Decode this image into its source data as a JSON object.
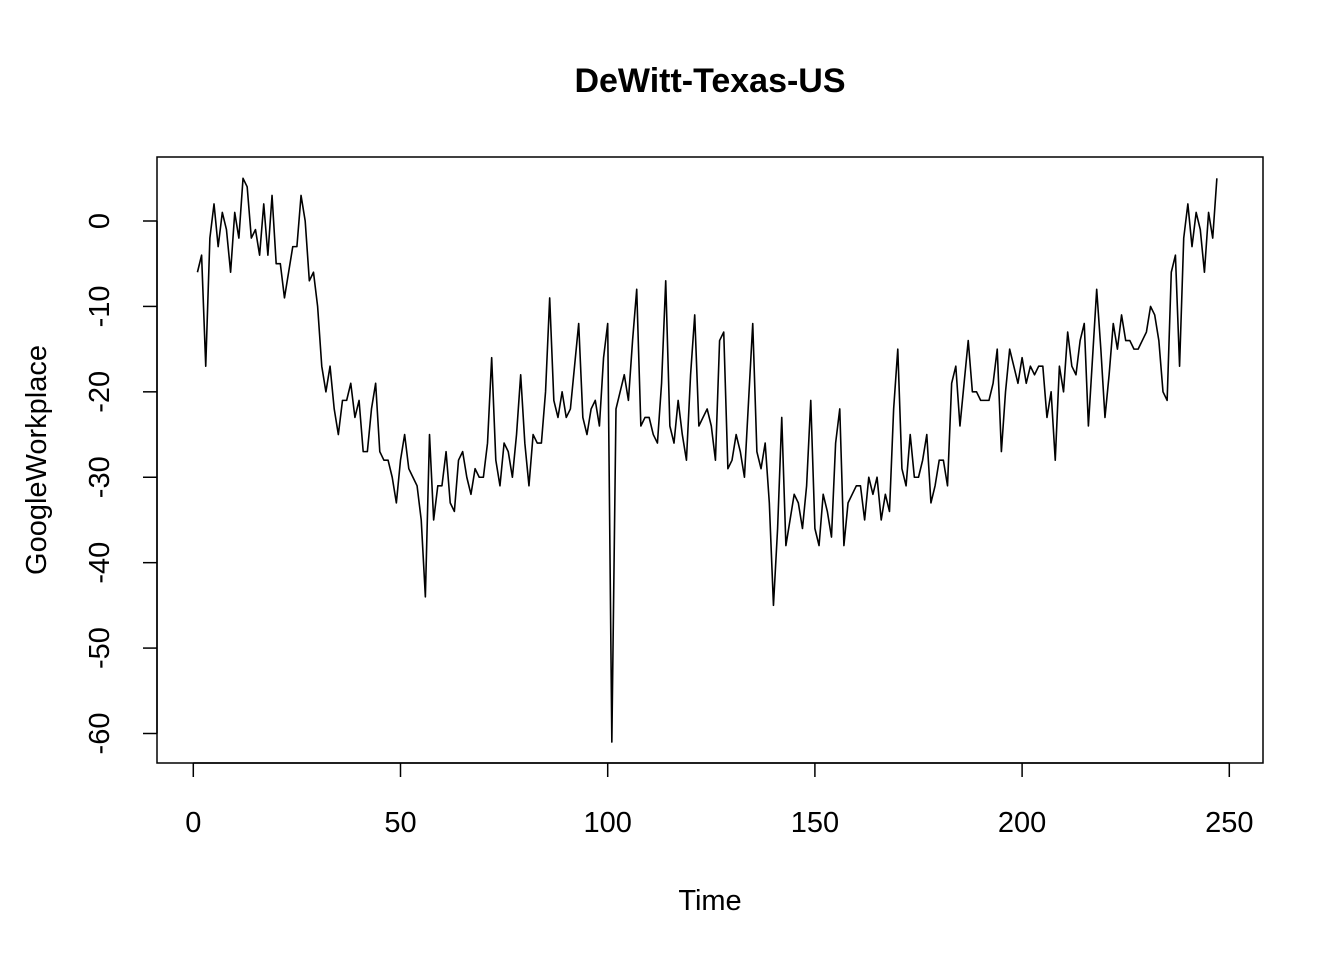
{
  "chart_data": {
    "type": "line",
    "title": "DeWitt-Texas-US",
    "xlabel": "Time",
    "ylabel": "GoogleWorkplace",
    "xlim": [
      1,
      248
    ],
    "ylim": [
      -61,
      5
    ],
    "x_ticks": [
      0,
      50,
      100,
      150,
      200,
      250
    ],
    "y_ticks": [
      0,
      -10,
      -20,
      -30,
      -40,
      -50,
      -60
    ],
    "grid": false,
    "legend": "none",
    "line_color": "#000000",
    "series": [
      {
        "values": [
          -6,
          -4,
          -17,
          -2,
          2,
          -3,
          1,
          -1,
          -6,
          1,
          -2,
          5,
          4,
          -2,
          -1,
          -4,
          2,
          -4,
          3,
          -5,
          -5,
          -9,
          -6,
          -3,
          -3,
          3,
          0,
          -7,
          -6,
          -10,
          -17,
          -20,
          -17,
          -22,
          -25,
          -21,
          -21,
          -19,
          -23,
          -21,
          -27,
          -27,
          -22,
          -19,
          -27,
          -28,
          -28,
          -30,
          -33,
          -28,
          -25,
          -29,
          -30,
          -31,
          -35,
          -44,
          -25,
          -35,
          -31,
          -31,
          -27,
          -33,
          -34,
          -28,
          -27,
          -30,
          -32,
          -29,
          -30,
          -30,
          -26,
          -16,
          -28,
          -31,
          -26,
          -27,
          -30,
          -25,
          -18,
          -26,
          -31,
          -25,
          -26,
          -26,
          -20,
          -9,
          -21,
          -23,
          -20,
          -23,
          -22,
          -17,
          -12,
          -23,
          -25,
          -22,
          -21,
          -24,
          -16,
          -12,
          -61,
          -22,
          -20,
          -18,
          -21,
          -14,
          -8,
          -24,
          -23,
          -23,
          -25,
          -26,
          -19,
          -7,
          -24,
          -26,
          -21,
          -25,
          -28,
          -18,
          -11,
          -24,
          -23,
          -22,
          -24,
          -28,
          -14,
          -13,
          -29,
          -28,
          -25,
          -27,
          -30,
          -21,
          -12,
          -27,
          -29,
          -26,
          -33,
          -45,
          -36,
          -23,
          -38,
          -35,
          -32,
          -33,
          -36,
          -31,
          -21,
          -36,
          -38,
          -32,
          -34,
          -37,
          -26,
          -22,
          -38,
          -33,
          -32,
          -31,
          -31,
          -35,
          -30,
          -32,
          -30,
          -35,
          -32,
          -34,
          -22,
          -15,
          -29,
          -31,
          -25,
          -30,
          -30,
          -28,
          -25,
          -33,
          -31,
          -28,
          -28,
          -31,
          -19,
          -17,
          -24,
          -19,
          -14,
          -20,
          -20,
          -21,
          -21,
          -21,
          -19,
          -15,
          -27,
          -20,
          -15,
          -17,
          -19,
          -16,
          -19,
          -17,
          -18,
          -17,
          -17,
          -23,
          -20,
          -28,
          -17,
          -20,
          -13,
          -17,
          -18,
          -14,
          -12,
          -24,
          -16,
          -8,
          -15,
          -23,
          -18,
          -12,
          -15,
          -11,
          -14,
          -14,
          -15,
          -15,
          -14,
          -13,
          -10,
          -11,
          -14,
          -20,
          -21,
          -6,
          -4,
          -17,
          -2,
          2,
          -3,
          1,
          -1,
          -6,
          1,
          -2,
          5
        ]
      }
    ]
  }
}
